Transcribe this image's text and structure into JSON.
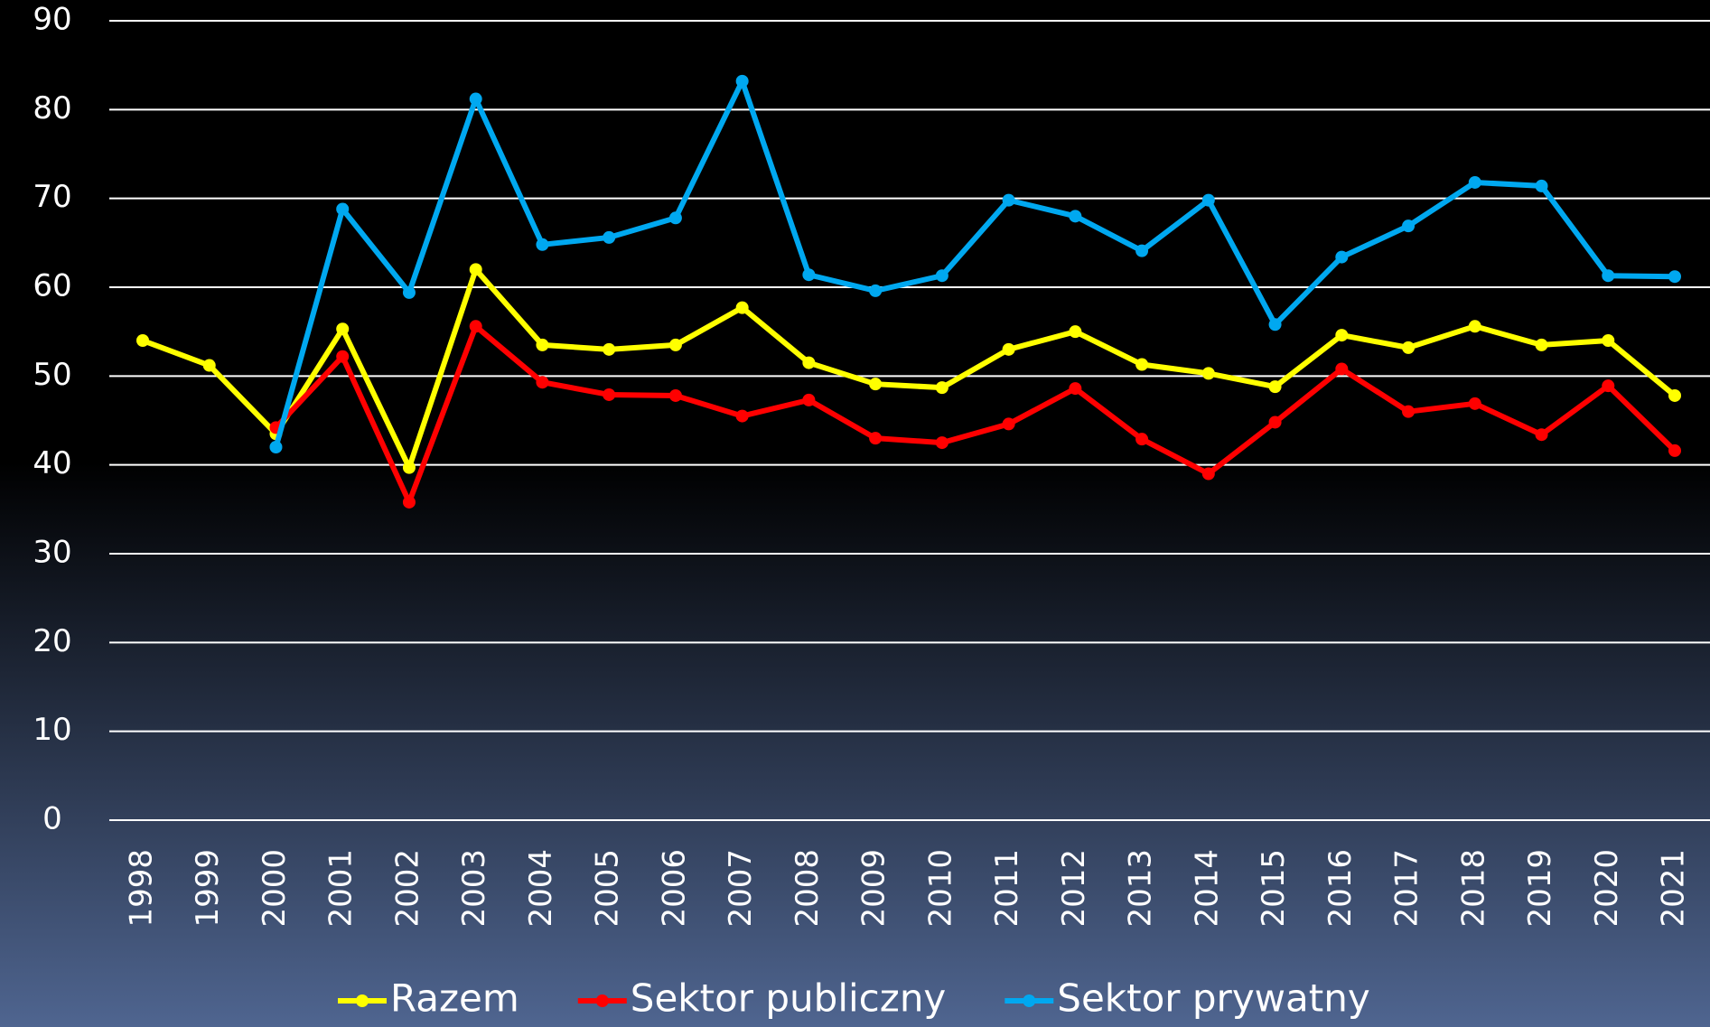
{
  "chart_data": {
    "type": "line",
    "categories": [
      "1998",
      "1999",
      "2000",
      "2001",
      "2002",
      "2003",
      "2004",
      "2005",
      "2006",
      "2007",
      "2008",
      "2009",
      "2010",
      "2011",
      "2012",
      "2013",
      "2014",
      "2015",
      "2016",
      "2017",
      "2018",
      "2019",
      "2020",
      "2021"
    ],
    "series": [
      {
        "name": "Razem",
        "color": "#ffff00",
        "values": [
          54,
          51.2,
          43.5,
          55.3,
          39.7,
          62,
          53.5,
          53,
          53.5,
          57.7,
          51.5,
          49.1,
          48.7,
          53,
          55,
          51.3,
          50.3,
          48.8,
          54.6,
          53.2,
          55.6,
          53.5,
          54,
          47.8
        ]
      },
      {
        "name": "Sektor publiczny",
        "color": "#ff0000",
        "values": [
          null,
          null,
          44.2,
          52.2,
          35.8,
          55.6,
          49.3,
          47.9,
          47.8,
          45.5,
          47.3,
          43,
          42.5,
          44.6,
          48.6,
          42.9,
          39,
          44.8,
          50.8,
          46,
          46.9,
          43.4,
          48.9,
          41.6
        ]
      },
      {
        "name": "Sektor prywatny",
        "color": "#00a8f0",
        "values": [
          null,
          null,
          42,
          68.8,
          59.4,
          81.2,
          64.8,
          65.6,
          67.8,
          83.2,
          61.4,
          59.6,
          61.3,
          69.8,
          68,
          64.1,
          69.8,
          55.8,
          63.4,
          66.9,
          71.8,
          71.4,
          61.3,
          61.2
        ]
      }
    ],
    "ylim": [
      0,
      90
    ],
    "yticks": [
      0,
      10,
      20,
      30,
      40,
      50,
      60,
      70,
      80,
      90
    ],
    "grid": true,
    "legend": "bottom"
  }
}
